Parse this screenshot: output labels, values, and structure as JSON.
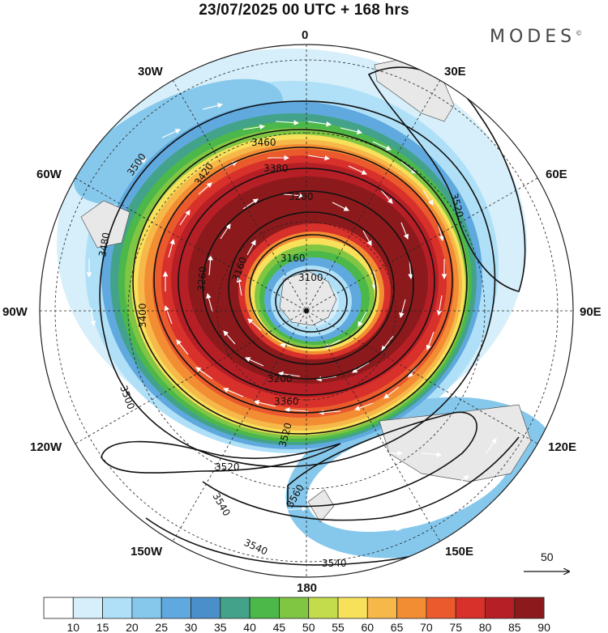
{
  "title": "23/07/2025  00 UTC  + 168 hrs",
  "brand": "MODES",
  "brand_mark": "©",
  "longitude_labels": {
    "lon_0": "0",
    "lon_30e": "30E",
    "lon_60e": "60E",
    "lon_90e": "90E",
    "lon_120e": "120E",
    "lon_150e": "150E",
    "lon_180": "180",
    "lon_150w": "150W",
    "lon_120w": "120W",
    "lon_90w": "90W",
    "lon_60w": "60W",
    "lon_30w": "30W"
  },
  "contour_labels": {
    "c3100": "3100",
    "c3160": "3160",
    "c3160b": "3160",
    "c3200": "3200",
    "c3260": "3260",
    "c3280": "3280",
    "c3380": "3380",
    "c3400": "3400",
    "c3420": "3420",
    "c3460": "3460",
    "c3480": "3480",
    "c3500a": "3500",
    "c3500b": "3500",
    "c3520a": "3520",
    "c3520b": "3520",
    "c3520c": "3520",
    "c3540a": "3540",
    "c3540b": "3540",
    "c3540c": "3540",
    "c3560": "3560",
    "c3360": "3360"
  },
  "reference_vector": {
    "label": "50"
  },
  "colorbar": {
    "ticks": [
      "10",
      "15",
      "20",
      "25",
      "30",
      "35",
      "40",
      "45",
      "50",
      "55",
      "60",
      "65",
      "70",
      "75",
      "80",
      "85",
      "90"
    ],
    "colors": [
      "#ffffff",
      "#d6effa",
      "#afe0f7",
      "#86c8ec",
      "#5fa9df",
      "#4a8fc9",
      "#43a38a",
      "#4cb84a",
      "#80c643",
      "#c2dc4b",
      "#f7e15a",
      "#f7b84a",
      "#f38d34",
      "#ea5a2d",
      "#d8302a",
      "#b71f26",
      "#8c1a1c"
    ]
  }
}
